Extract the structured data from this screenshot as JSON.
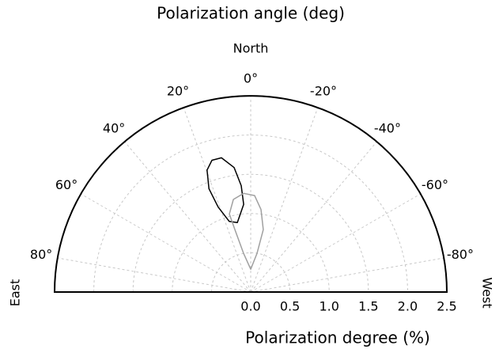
{
  "chart_data": {
    "type": "polar",
    "title": "Polarization angle (deg)",
    "top_label": "North",
    "left_label": "East",
    "right_label": "West",
    "r_label": "Polarization degree (%)",
    "rlim": [
      0,
      2.5
    ],
    "rticks": [
      {
        "value": 0,
        "label": "0.0"
      },
      {
        "value": 0.5,
        "label": "0.5"
      },
      {
        "value": 1,
        "label": "1.0"
      },
      {
        "value": 1.5,
        "label": "1.5"
      },
      {
        "value": 2,
        "label": "2.0"
      },
      {
        "value": 2.5,
        "label": "2.5"
      }
    ],
    "thetalim": [
      -90,
      90
    ],
    "thetaticks": [
      {
        "value": 80,
        "label": "80°"
      },
      {
        "value": 60,
        "label": "60°"
      },
      {
        "value": 40,
        "label": "40°"
      },
      {
        "value": 20,
        "label": "20°"
      },
      {
        "value": 0,
        "label": "0°"
      },
      {
        "value": -20,
        "label": "-20°"
      },
      {
        "value": -40,
        "label": "-40°"
      },
      {
        "value": -60,
        "label": "-60°"
      },
      {
        "value": -80,
        "label": "-80°"
      }
    ],
    "grid": true,
    "series": [
      {
        "color": "#000000",
        "theta": [
          12.3,
          7.6,
          5.1,
          4.6,
          10.9,
          16.9,
          21.0,
          22.0,
          19.7,
          16.4
        ],
        "r": [
          1.75,
          1.6,
          1.36,
          1.12,
          0.9,
          0.94,
          1.16,
          1.42,
          1.65,
          1.75
        ]
      },
      {
        "color": "#a0a0a0",
        "theta": [
          4.1,
          -2.3,
          -7.1,
          -11.4,
          -9.3,
          0,
          10.4,
          14.2,
          15.3,
          10.6
        ],
        "r": [
          1.26,
          1.23,
          1.06,
          0.81,
          0.5,
          0.29,
          0.5,
          0.82,
          1.03,
          1.2
        ]
      }
    ]
  }
}
